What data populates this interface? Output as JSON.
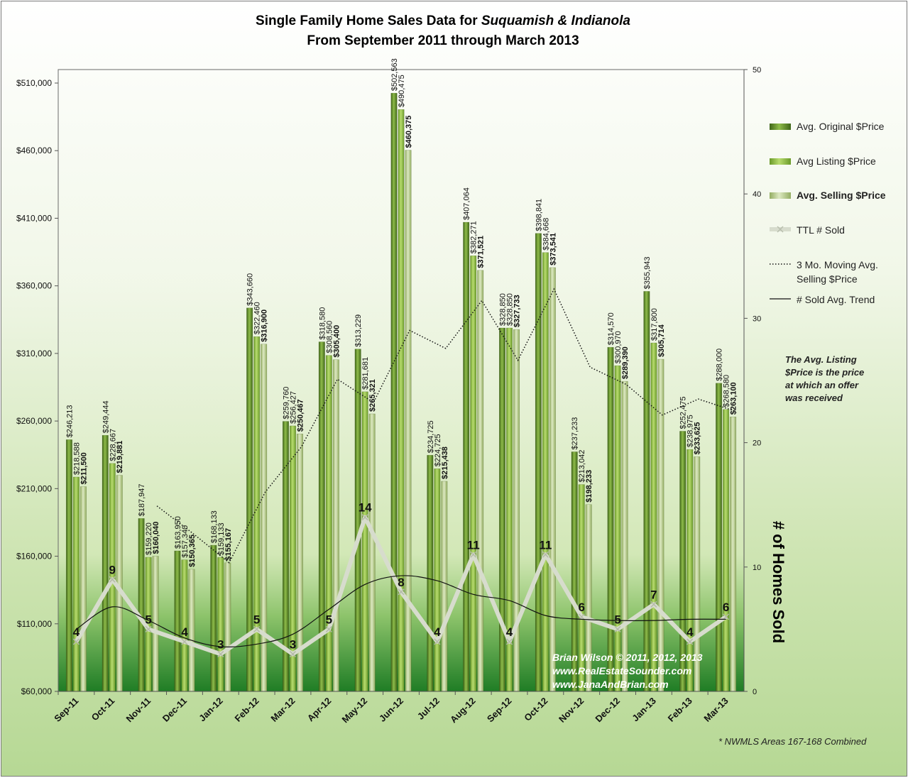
{
  "chart_data": {
    "type": "bar",
    "title_line1_pre": "Single Family Home Sales Data for ",
    "title_line1_em": "Suquamish & Indianola",
    "title_line2": "From September 2011 through March 2013",
    "categories": [
      "Sep-11",
      "Oct-11",
      "Nov-11",
      "Dec-11",
      "Jan-12",
      "Feb-12",
      "Mar-12",
      "Apr-12",
      "May-12",
      "Jun-12",
      "Jul-12",
      "Aug-12",
      "Sep-12",
      "Oct-12",
      "Nov-12",
      "Dec-12",
      "Jan-13",
      "Feb-13",
      "Mar-13"
    ],
    "y_left": {
      "min": 60000,
      "max": 510000,
      "ticks": [
        60000,
        110000,
        160000,
        210000,
        260000,
        310000,
        360000,
        410000,
        460000,
        510000
      ],
      "tick_labels": [
        "$60,000",
        "$110,000",
        "$160,000",
        "$210,000",
        "$260,000",
        "$310,000",
        "$360,000",
        "$410,000",
        "$460,000",
        "$510,000"
      ]
    },
    "y_right": {
      "min": 0,
      "max": 50,
      "ticks": [
        0,
        10,
        20,
        30,
        40,
        50
      ],
      "label": "# of Homes Sold"
    },
    "series": [
      {
        "name": "Avg. Original $Price",
        "color": "#5d8a2a",
        "values": [
          246213,
          249444,
          187947,
          163950,
          168133,
          343660,
          259760,
          318580,
          313229,
          502563,
          234725,
          407064,
          328850,
          398841,
          237233,
          314570,
          355943,
          252475,
          288000
        ],
        "labels": [
          "$246,213",
          "$249,444",
          "$187,947",
          "$163,950",
          "$168,133",
          "$343,660",
          "$259,760",
          "$318,580",
          "$313,229",
          "$502,563",
          "$234,725",
          "$407,064",
          "$328,850",
          "$398,841",
          "$237,233",
          "$314,570",
          "$355,943",
          "$252,475",
          "$288,000"
        ]
      },
      {
        "name": "Avg Listing $Price",
        "color": "#8cb83e",
        "values": [
          218588,
          228667,
          159220,
          157340,
          159133,
          322460,
          256427,
          308560,
          281681,
          490475,
          224725,
          382271,
          328850,
          384668,
          213042,
          300970,
          317800,
          238975,
          268580
        ],
        "labels": [
          "$218,588",
          "$228,667",
          "$159,220",
          "$157,340",
          "$159,133",
          "$322,460",
          "$256,427",
          "$308,560",
          "$281,681",
          "$490,475",
          "$224,725",
          "$382,271",
          "$328,850",
          "$384,668",
          "$213,042",
          "$300,970",
          "$317,800",
          "$238,975",
          "$268,580"
        ]
      },
      {
        "name": "Avg. Selling $Price",
        "color": "#b7cf86",
        "values": [
          211500,
          219881,
          160040,
          150365,
          155167,
          316900,
          250467,
          305400,
          265321,
          460375,
          215438,
          371521,
          327733,
          373541,
          198233,
          289390,
          305714,
          233625,
          263100
        ],
        "labels": [
          "$211,500",
          "$219,881",
          "$160,040",
          "$150,365",
          "$155,167",
          "$316,900",
          "$250,467",
          "$305,400",
          "$265,321",
          "$460,375",
          "$215,438",
          "$371,521",
          "$327,733",
          "$373,541",
          "$198,233",
          "$289,390",
          "$305,714",
          "$233,625",
          "$263,100"
        ]
      },
      {
        "name": "TTL # Sold",
        "axis": "right",
        "color": "#d7dccd",
        "values": [
          4,
          9,
          5,
          4,
          3,
          5,
          3,
          5,
          14,
          8,
          4,
          11,
          4,
          11,
          6,
          5,
          7,
          4,
          6
        ],
        "labels": [
          "4",
          "9",
          "5",
          "4",
          "3",
          "5",
          "3",
          "5",
          "14",
          "8",
          "4",
          "11",
          "4",
          "11",
          "6",
          "5",
          "7",
          "4",
          "6"
        ]
      },
      {
        "name": "3 Mo. Moving Avg. Selling $Price",
        "style": "dotted",
        "values": [
          null,
          null,
          197140,
          176762,
          155191,
          207477,
          240845,
          290922,
          273729,
          327032,
          313711,
          349111,
          304897,
          357598,
          299836,
          287055,
          264446,
          276243,
          267480
        ]
      },
      {
        "name": "# Sold Avg. Trend",
        "axis": "right",
        "style": "solid",
        "values": [
          5,
          6.8,
          5.7,
          4.3,
          3.6,
          3.8,
          4.6,
          6.6,
          8.6,
          9.3,
          8.9,
          7.8,
          7.3,
          6.1,
          5.8,
          5.7,
          5.7,
          5.8,
          5.8
        ]
      }
    ],
    "legend": {
      "position": "right",
      "items": [
        "Avg. Original $Price",
        "Avg Listing $Price",
        "Avg. Selling $Price",
        "TTL # Sold",
        "3 Mo. Moving Avg.",
        "Selling $Price",
        "# Sold Avg. Trend"
      ]
    },
    "note_lines": [
      "The Avg. Listing",
      "$Price is the price",
      "at which an offer",
      "was received"
    ],
    "credit_lines": [
      "Brian Wilson  © 2011, 2012, 2013",
      "www.RealEstateSounder.com",
      "www.JanaAndBrian.com"
    ],
    "footnote": "* NWMLS Areas 167-168 Combined",
    "colors": {
      "original_bar": "#5d8a2a",
      "listing_bar": "#8cb83e",
      "selling_bar": "#b7cf86",
      "sold_line": "#d7dccd",
      "plot_bottom": "#1f7d25"
    }
  }
}
